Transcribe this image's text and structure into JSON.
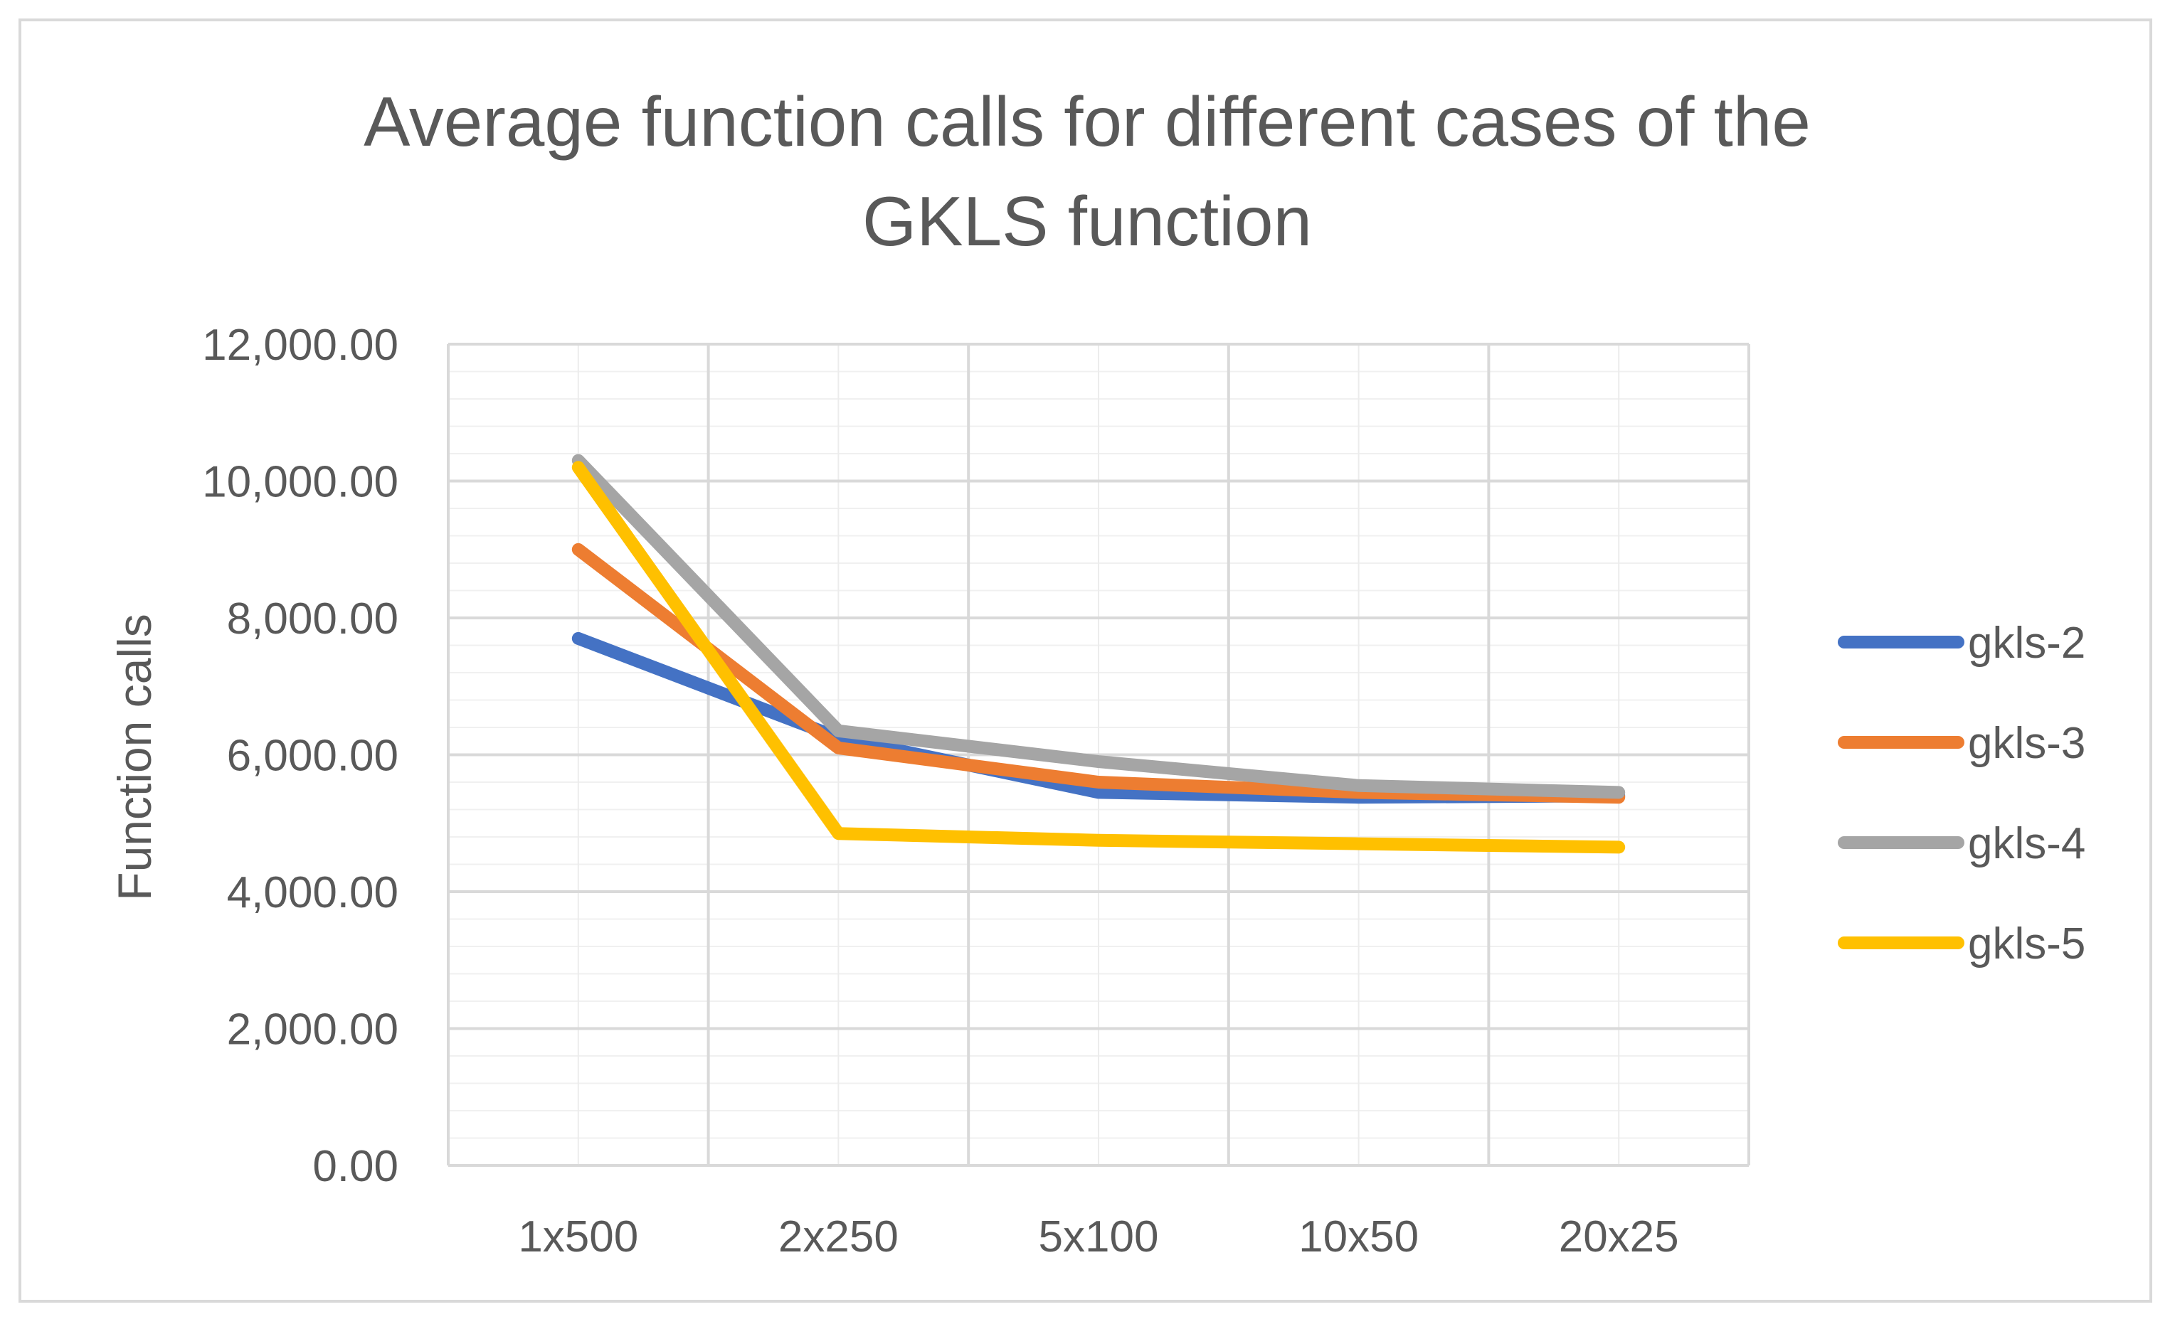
{
  "chart_data": {
    "type": "line",
    "title_lines": [
      "Average function calls for different cases of the",
      "GKLS function"
    ],
    "xlabel": "",
    "ylabel": "Function calls",
    "categories": [
      "1x500",
      "2x250",
      "5x100",
      "10x50",
      "20x25"
    ],
    "ylim": [
      0,
      12000
    ],
    "y_ticks": [
      0,
      2000,
      4000,
      6000,
      8000,
      10000,
      12000
    ],
    "y_tick_labels": [
      "0.00",
      "2,000.00",
      "4,000.00",
      "6,000.00",
      "8,000.00",
      "10,000.00",
      "12,000.00"
    ],
    "grid": true,
    "legend_position": "right",
    "series": [
      {
        "name": "gkls-2",
        "color": "#4472c4",
        "values": [
          7700,
          6250,
          5450,
          5380,
          5400
        ]
      },
      {
        "name": "gkls-3",
        "color": "#ed7d31",
        "values": [
          9000,
          6100,
          5600,
          5450,
          5380
        ]
      },
      {
        "name": "gkls-4",
        "color": "#a5a5a5",
        "values": [
          10300,
          6350,
          5900,
          5550,
          5450
        ]
      },
      {
        "name": "gkls-5",
        "color": "#ffc000",
        "values": [
          10200,
          4850,
          4750,
          4700,
          4650
        ]
      }
    ]
  }
}
